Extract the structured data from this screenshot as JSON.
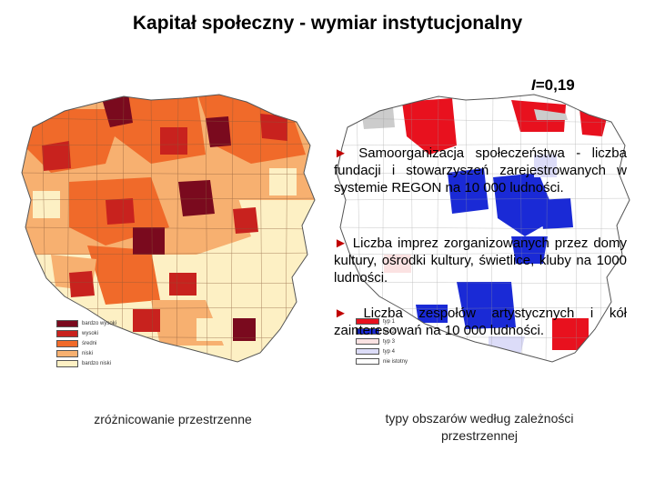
{
  "title": "Kapitał społeczny - wymiar instytucjonalny",
  "statistic": {
    "symbol": "I",
    "value": "=0,19"
  },
  "items": [
    {
      "marker": "►",
      "text": "Samoorganizacja społeczeństwa - liczba fundacji i stowarzyszeń zarejestrowanych w systemie REGON na 10 000 ludności."
    },
    {
      "marker": "►",
      "text": "Liczba imprez zorganizowanych przez domy kultury, ośrodki kultury, świetlice, kluby na 1000 ludności."
    },
    {
      "marker": "►",
      "text": "Liczba zespołów artystycznych i kół zainteresowań na 10 000 ludności."
    }
  ],
  "legend_left": [
    {
      "label": "bardzo wysoki",
      "color": "#7a0a1e"
    },
    {
      "label": "wysoki",
      "color": "#c8221e"
    },
    {
      "label": "średni",
      "color": "#f06a2a"
    },
    {
      "label": "niski",
      "color": "#f7b070"
    },
    {
      "label": "bardzo niski",
      "color": "#fdf0c4"
    }
  ],
  "legend_right": [
    {
      "label": "typ 1",
      "color": "#e8111e"
    },
    {
      "label": "typ 2",
      "color": "#1a2ad6"
    },
    {
      "label": "typ 3",
      "color": "#fbe2e2"
    },
    {
      "label": "typ 4",
      "color": "#dcdcf8"
    },
    {
      "label": "nie istotny",
      "color": "#ffffff"
    }
  ],
  "captions": {
    "left": "zróżnicowanie przestrzenne",
    "right": "typy obszarów według zależności przestrzennej"
  }
}
